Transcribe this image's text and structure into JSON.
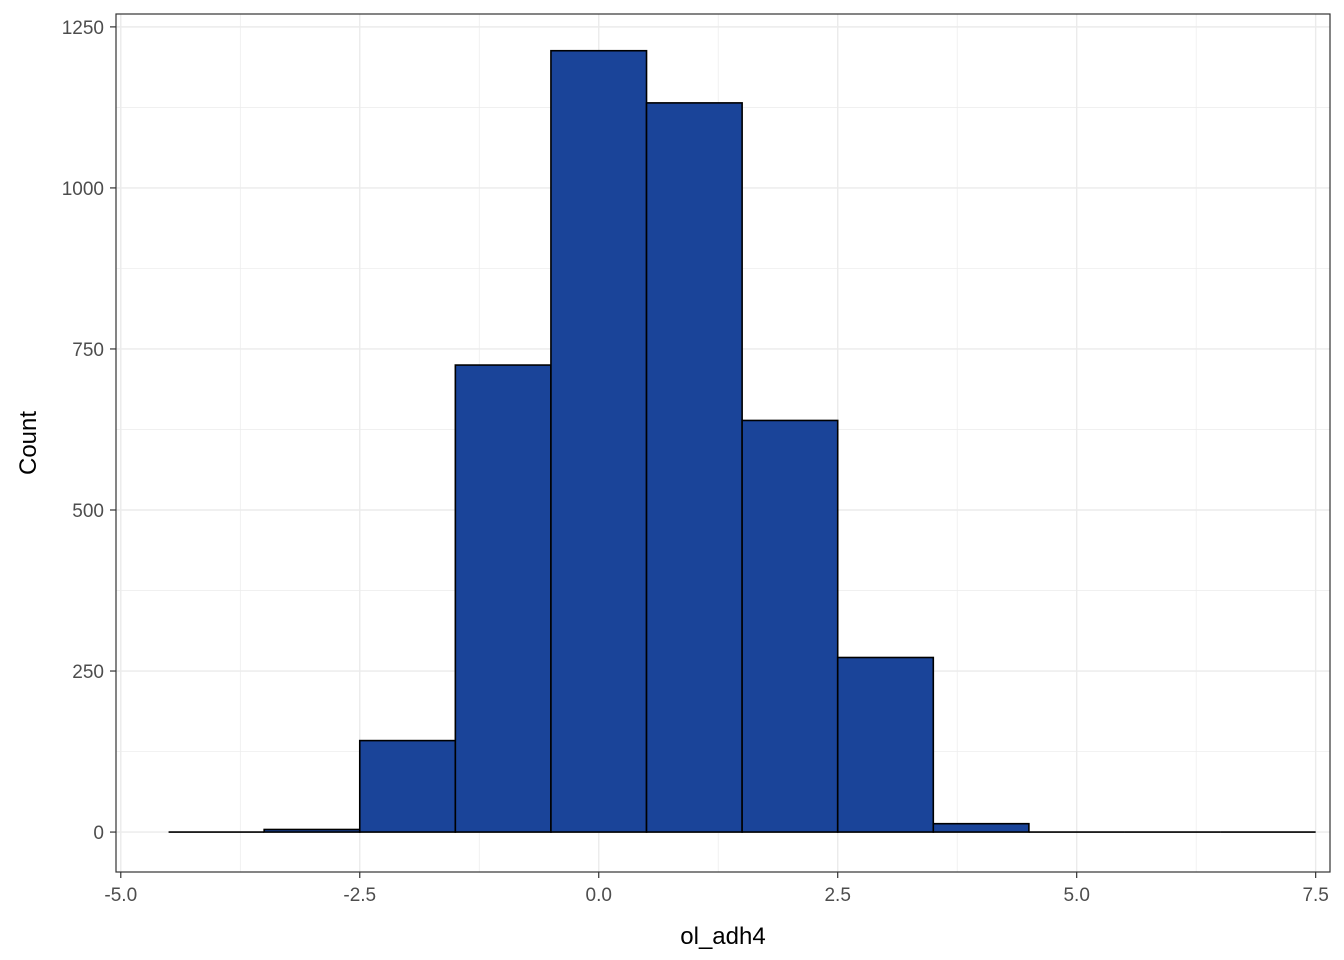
{
  "chart_data": {
    "type": "histogram",
    "xlabel": "ol_adh4",
    "ylabel": "Count",
    "xlim": [
      -5.05,
      7.65
    ],
    "ylim": [
      -62,
      1270
    ],
    "x_ticks": [
      -5.0,
      -2.5,
      0.0,
      2.5,
      5.0,
      7.5
    ],
    "x_tick_labels": [
      "-5.0",
      "-2.5",
      "0.0",
      "2.5",
      "5.0",
      "7.5"
    ],
    "y_ticks": [
      0,
      250,
      500,
      750,
      1000,
      1250
    ],
    "y_tick_labels": [
      "0",
      "250",
      "500",
      "750",
      "1000",
      "1250"
    ],
    "grid": true,
    "bin_width": 1,
    "bins": [
      {
        "x0": -4.5,
        "x1": -3.5,
        "count": 0
      },
      {
        "x0": -3.5,
        "x1": -2.5,
        "count": 4
      },
      {
        "x0": -2.5,
        "x1": -1.5,
        "count": 142
      },
      {
        "x0": -1.5,
        "x1": -0.5,
        "count": 725
      },
      {
        "x0": -0.5,
        "x1": 0.5,
        "count": 1213
      },
      {
        "x0": 0.5,
        "x1": 1.5,
        "count": 1132
      },
      {
        "x0": 1.5,
        "x1": 2.5,
        "count": 639
      },
      {
        "x0": 2.5,
        "x1": 3.5,
        "count": 271
      },
      {
        "x0": 3.5,
        "x1": 4.5,
        "count": 13
      },
      {
        "x0": 4.5,
        "x1": 5.5,
        "count": 0
      },
      {
        "x0": 5.5,
        "x1": 6.5,
        "count": 0
      },
      {
        "x0": 6.5,
        "x1": 7.5,
        "count": 0
      }
    ],
    "colors": {
      "fill": "#1a4499",
      "outline": "#000000",
      "grid": "#ebebeb",
      "panel_border": "#333333"
    }
  }
}
